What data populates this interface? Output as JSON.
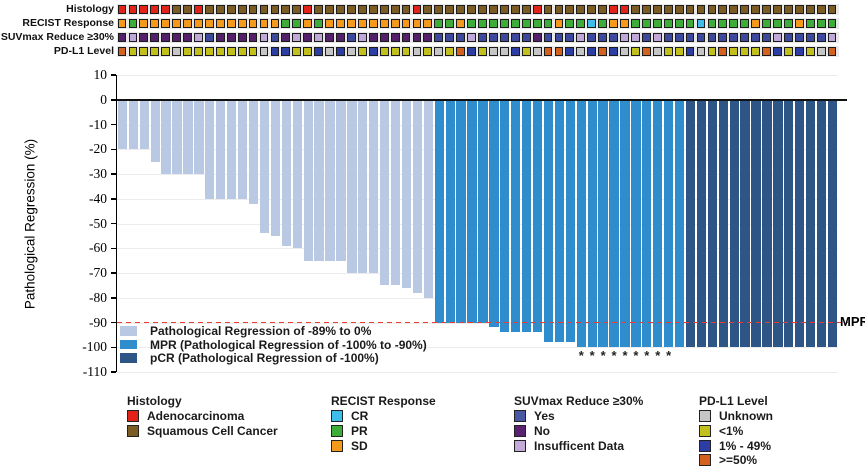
{
  "mpr_label": "MPR",
  "tracks": {
    "rows": [
      {
        "id": "histology",
        "label": "Histology",
        "cells": [
          "A",
          "A",
          "A",
          "A",
          "A",
          "S",
          "S",
          "A",
          "S",
          "S",
          "S",
          "S",
          "S",
          "S",
          "S",
          "S",
          "S",
          "A",
          "S",
          "S",
          "S",
          "S",
          "S",
          "S",
          "S",
          "S",
          "S",
          "A",
          "S",
          "S",
          "S",
          "S",
          "S",
          "S",
          "S",
          "S",
          "S",
          "S",
          "A",
          "S",
          "S",
          "S",
          "S",
          "S",
          "S",
          "A",
          "A",
          "S",
          "S",
          "S",
          "S",
          "S",
          "S",
          "S",
          "S",
          "S",
          "S",
          "S",
          "S",
          "S",
          "S",
          "S",
          "S",
          "S",
          "S",
          "S"
        ]
      },
      {
        "id": "recist",
        "label": "RECIST Response",
        "cells": [
          "SD",
          "PR",
          "SD",
          "SD",
          "SD",
          "SD",
          "SD",
          "SD",
          "SD",
          "SD",
          "SD",
          "SD",
          "SD",
          "SD",
          "SD",
          "PR",
          "PR",
          "SD",
          "PR",
          "SD",
          "SD",
          "SD",
          "SD",
          "SD",
          "SD",
          "SD",
          "SD",
          "SD",
          "SD",
          "PR",
          "PR",
          "SD",
          "PR",
          "PR",
          "PR",
          "PR",
          "PR",
          "PR",
          "PR",
          "PR",
          "SD",
          "PR",
          "PR",
          "CR",
          "PR",
          "SD",
          "SD",
          "PR",
          "PR",
          "PR",
          "PR",
          "PR",
          "PR",
          "CR",
          "PR",
          "PR",
          "PR",
          "PR",
          "SD",
          "PR",
          "PR",
          "PR",
          "SD",
          "PR",
          "PR",
          "PR"
        ]
      },
      {
        "id": "suvmax",
        "label": "SUVmax Reduce ≥30%",
        "cells": [
          "N",
          "I",
          "N",
          "N",
          "N",
          "N",
          "N",
          "I",
          "Y",
          "N",
          "N",
          "N",
          "N",
          "I",
          "Y",
          "N",
          "I",
          "N",
          "I",
          "N",
          "N",
          "Y",
          "I",
          "N",
          "N",
          "N",
          "N",
          "N",
          "N",
          "Y",
          "Y",
          "Y",
          "I",
          "Y",
          "Y",
          "Y",
          "Y",
          "Y",
          "N",
          "Y",
          "Y",
          "Y",
          "I",
          "Y",
          "Y",
          "Y",
          "I",
          "I",
          "Y",
          "I",
          "Y",
          "Y",
          "Y",
          "Y",
          "Y",
          "Y",
          "Y",
          "Y",
          "Y",
          "Y",
          "I",
          "Y",
          "Y",
          "Y",
          "Y",
          "I"
        ]
      },
      {
        "id": "pdl1",
        "label": "PD-L1 Level",
        "cells": [
          "H",
          "L",
          "L",
          "L",
          "L",
          "U",
          "L",
          "L",
          "L",
          "L",
          "L",
          "L",
          "L",
          "U",
          "M",
          "M",
          "L",
          "L",
          "M",
          "U",
          "M",
          "U",
          "L",
          "M",
          "L",
          "L",
          "L",
          "U",
          "L",
          "U",
          "L",
          "H",
          "M",
          "L",
          "U",
          "U",
          "M",
          "L",
          "U",
          "H",
          "H",
          "M",
          "U",
          "M",
          "H",
          "M",
          "U",
          "L",
          "H",
          "U",
          "L",
          "L",
          "M",
          "U",
          "L",
          "H",
          "L",
          "L",
          "L",
          "H",
          "M",
          "L",
          "M",
          "L",
          "U",
          "H"
        ]
      }
    ],
    "palettes": {
      "histology": {
        "A": "#e1231a",
        "S": "#7a5c24"
      },
      "recist": {
        "SD": "#f5991d",
        "PR": "#3dac38",
        "CR": "#3fbcea"
      },
      "suvmax": {
        "Y": "#3c499c",
        "N": "#55206b",
        "I": "#c0a8d8"
      },
      "pdl1": {
        "U": "#c6c6c6",
        "L": "#c1c01c",
        "M": "#2c3da4",
        "H": "#d2621d"
      }
    }
  },
  "chart_data": {
    "type": "bar",
    "ylabel": "Pathological Regression (%)",
    "ylim": [
      10,
      -110
    ],
    "yticks": [
      10,
      0,
      -10,
      -20,
      -30,
      -40,
      -50,
      -60,
      -70,
      -80,
      -90,
      -100,
      -110
    ],
    "grid": "horizontal",
    "reference_line": {
      "y": -90,
      "label": "MPR",
      "color": "#ee3b31",
      "style": "dashed"
    },
    "values": [
      -20,
      -20,
      -20,
      -25,
      -30,
      -30,
      -30,
      -30,
      -40,
      -40,
      -40,
      -40,
      -42,
      -54,
      -55,
      -59,
      -60,
      -65,
      -65,
      -65,
      -65,
      -70,
      -70,
      -70,
      -75,
      -75,
      -76,
      -78,
      -80,
      -90,
      -90,
      -90,
      -90,
      -90,
      -92,
      -94,
      -94,
      -94,
      -94,
      -98,
      -98,
      -98,
      -100,
      -100,
      -100,
      -100,
      -100,
      -100,
      -100,
      -100,
      -100,
      -100,
      -100,
      -100,
      -100,
      -100,
      -100,
      -100,
      -100,
      -100,
      -100,
      -100,
      -100,
      -100,
      -100,
      -100
    ],
    "bar_groups": [
      "reg",
      "reg",
      "reg",
      "reg",
      "reg",
      "reg",
      "reg",
      "reg",
      "reg",
      "reg",
      "reg",
      "reg",
      "reg",
      "reg",
      "reg",
      "reg",
      "reg",
      "reg",
      "reg",
      "reg",
      "reg",
      "reg",
      "reg",
      "reg",
      "reg",
      "reg",
      "reg",
      "reg",
      "reg",
      "mpr",
      "mpr",
      "mpr",
      "mpr",
      "mpr",
      "mpr",
      "mpr",
      "mpr",
      "mpr",
      "mpr",
      "mpr",
      "mpr",
      "mpr",
      "mpr",
      "mpr",
      "mpr",
      "mpr",
      "mpr",
      "mpr",
      "mpr",
      "mpr",
      "mpr",
      "mpr",
      "pcr",
      "pcr",
      "pcr",
      "pcr",
      "pcr",
      "pcr",
      "pcr",
      "pcr",
      "pcr",
      "pcr",
      "pcr",
      "pcr",
      "pcr",
      "pcr"
    ],
    "group_colors": {
      "reg": "#b9c9e4",
      "mpr": "#2f8dcd",
      "pcr": "#2d5585"
    },
    "asterisk_bar_indices": [
      43,
      44,
      45,
      46,
      47,
      48,
      49,
      50,
      51
    ],
    "asterisk_symbol": "*",
    "legend_position": "inside-bottom-left",
    "legend": [
      {
        "key": "reg",
        "label": "Pathological Regression of -89% to 0%"
      },
      {
        "key": "mpr",
        "label": "MPR (Pathological Regression of -100% to -90%)"
      },
      {
        "key": "pcr",
        "label": "pCR (Pathological Regression of -100%)"
      }
    ]
  },
  "bottom_legend": [
    {
      "title": "Histology",
      "items": [
        {
          "label": "Adenocarcinoma",
          "color": "#e1231a"
        },
        {
          "label": "Squamous Cell Cancer",
          "color": "#7a5c24"
        }
      ]
    },
    {
      "title": "RECIST Response",
      "items": [
        {
          "label": "CR",
          "color": "#3fbcea"
        },
        {
          "label": "PR",
          "color": "#3dac38"
        },
        {
          "label": "SD",
          "color": "#f5991d"
        }
      ]
    },
    {
      "title": "SUVmax Reduce ≥30%",
      "items": [
        {
          "label": "Yes",
          "color": "#4a58a5"
        },
        {
          "label": "No",
          "color": "#5a2170"
        },
        {
          "label": "Insufficent Data",
          "color": "#c3aad8"
        }
      ]
    },
    {
      "title": "PD-L1 Level",
      "items": [
        {
          "label": "Unknown",
          "color": "#c6c6c6"
        },
        {
          "label": "<1%",
          "color": "#c1c01c"
        },
        {
          "label": "1% - 49%",
          "color": "#2c3da4"
        },
        {
          "label": ">=50%",
          "color": "#d2621d"
        }
      ]
    }
  ]
}
